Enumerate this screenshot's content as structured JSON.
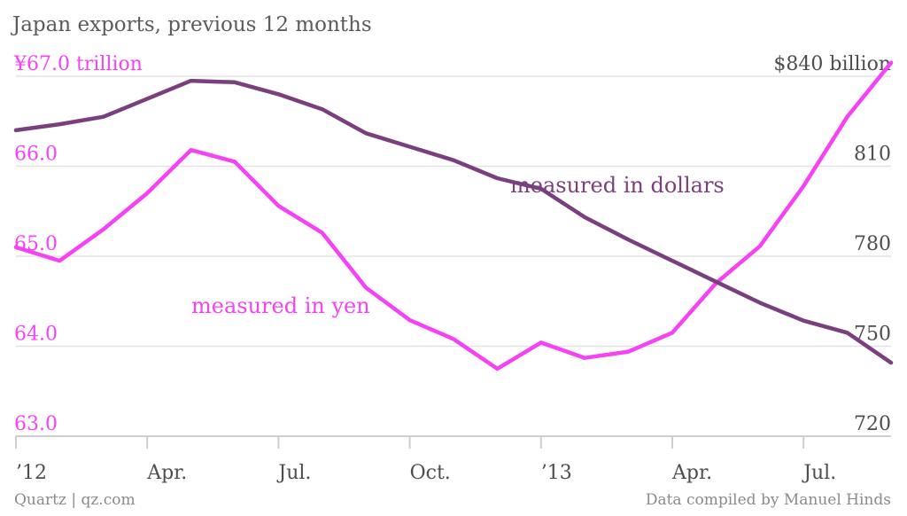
{
  "chart_data": {
    "type": "line",
    "title": "Japan exports, previous 12 months",
    "x": [
      "Jan '12",
      "Feb '12",
      "Mar '12",
      "Apr '12",
      "May '12",
      "Jun '12",
      "Jul '12",
      "Aug '12",
      "Sep '12",
      "Oct '12",
      "Nov '12",
      "Dec '12",
      "Jan '13",
      "Feb '13",
      "Mar '13",
      "Apr '13",
      "May '13",
      "Jun '13",
      "Jul '13",
      "Aug '13",
      "Sep '13"
    ],
    "x_tick_labels": [
      {
        "index": 0,
        "label": "’12"
      },
      {
        "index": 3,
        "label": "Apr."
      },
      {
        "index": 6,
        "label": "Jul."
      },
      {
        "index": 9,
        "label": "Oct."
      },
      {
        "index": 12,
        "label": "’13"
      },
      {
        "index": 15,
        "label": "Apr."
      },
      {
        "index": 18,
        "label": "Jul."
      }
    ],
    "left_axis": {
      "unit": "yen trillion",
      "ylim": [
        63.0,
        67.0
      ],
      "ticks": [
        {
          "value": 67.0,
          "label": "¥67.0 trillion"
        },
        {
          "value": 66.0,
          "label": "66.0"
        },
        {
          "value": 65.0,
          "label": "65.0"
        },
        {
          "value": 64.0,
          "label": "64.0"
        },
        {
          "value": 63.0,
          "label": "63.0"
        }
      ]
    },
    "right_axis": {
      "unit": "USD billion",
      "ylim": [
        720,
        840
      ],
      "ticks": [
        {
          "value": 840,
          "label": "$840 billion"
        },
        {
          "value": 810,
          "label": "810"
        },
        {
          "value": 780,
          "label": "780"
        },
        {
          "value": 750,
          "label": "750"
        },
        {
          "value": 720,
          "label": "720"
        }
      ]
    },
    "series": [
      {
        "name": "measured in yen",
        "axis": "left",
        "color": "#f542f5",
        "values": [
          65.1,
          64.95,
          65.3,
          65.7,
          66.18,
          66.05,
          65.56,
          65.26,
          64.65,
          64.29,
          64.08,
          63.75,
          64.04,
          63.87,
          63.94,
          64.15,
          64.7,
          65.11,
          65.78,
          66.55,
          67.15
        ]
      },
      {
        "name": "measured in dollars",
        "axis": "right",
        "color": "#7a3f7f",
        "values": [
          822,
          824,
          826.5,
          832.5,
          838.5,
          838,
          834,
          829,
          821,
          816.5,
          812,
          806,
          802.5,
          793,
          785.5,
          778.5,
          771.5,
          764.5,
          758.5,
          754.5,
          744.5
        ]
      }
    ],
    "legend": "inline-labels"
  },
  "footer": {
    "source": "Quartz | qz.com",
    "credit": "Data compiled by Manuel Hinds"
  }
}
